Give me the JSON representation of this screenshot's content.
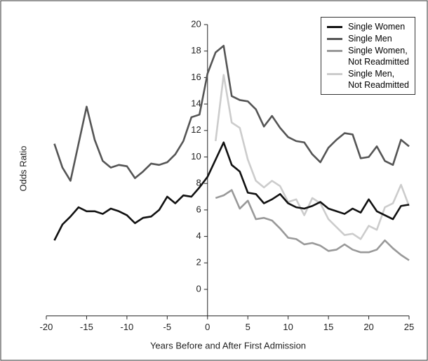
{
  "chart_data": {
    "type": "line",
    "xlabel": "Years Before and After First Admission",
    "ylabel": "Odds Ratio",
    "x": [
      -19,
      -18,
      -17,
      -16,
      -15,
      -14,
      -13,
      -12,
      -11,
      -10,
      -9,
      -8,
      -7,
      -6,
      -5,
      -4,
      -3,
      -2,
      -1,
      0,
      1,
      2,
      3,
      4,
      5,
      6,
      7,
      8,
      9,
      10,
      11,
      12,
      13,
      14,
      15,
      16,
      17,
      18,
      19,
      20,
      21,
      22,
      23,
      24,
      25
    ],
    "xlim": [
      -20,
      25
    ],
    "xticks": [
      -20,
      -15,
      -10,
      -5,
      0,
      5,
      10,
      15,
      20,
      25
    ],
    "ylim": [
      -2,
      20
    ],
    "yticks": [
      0,
      2,
      4,
      6,
      8,
      10,
      12,
      14,
      16,
      18,
      20
    ],
    "legend": "upper right",
    "series": [
      {
        "name": "Single Women",
        "color": "#111111",
        "values": [
          3.7,
          4.9,
          5.5,
          6.2,
          5.9,
          5.9,
          5.7,
          6.1,
          5.9,
          5.6,
          5.0,
          5.4,
          5.5,
          6.0,
          7.0,
          6.5,
          7.1,
          7.0,
          7.7,
          8.5,
          9.8,
          11.1,
          9.4,
          8.9,
          7.3,
          7.2,
          6.5,
          6.8,
          7.2,
          6.5,
          6.2,
          6.1,
          6.3,
          6.6,
          6.1,
          5.9,
          5.7,
          6.1,
          5.8,
          6.8,
          5.9,
          5.6,
          5.3,
          6.3,
          6.4
        ]
      },
      {
        "name": "Single Men",
        "color": "#555555",
        "values": [
          11.0,
          9.2,
          8.2,
          11.0,
          13.8,
          11.3,
          9.7,
          9.2,
          9.4,
          9.3,
          8.4,
          8.9,
          9.5,
          9.4,
          9.6,
          10.2,
          11.2,
          13.0,
          13.2,
          16.3,
          17.9,
          18.4,
          14.6,
          14.3,
          14.2,
          13.6,
          12.3,
          13.1,
          12.2,
          11.5,
          11.2,
          11.1,
          10.2,
          9.6,
          10.7,
          11.3,
          11.8,
          11.7,
          9.9,
          10.0,
          10.8,
          9.7,
          9.4,
          11.3,
          10.8
        ]
      },
      {
        "name": "Single Women,\nNot Readmitted",
        "color": "#999999",
        "values": [
          null,
          null,
          null,
          null,
          null,
          null,
          null,
          null,
          null,
          null,
          null,
          null,
          null,
          null,
          null,
          null,
          null,
          null,
          null,
          null,
          6.9,
          7.1,
          7.5,
          6.1,
          6.7,
          5.3,
          5.4,
          5.2,
          4.6,
          3.9,
          3.8,
          3.4,
          3.5,
          3.3,
          2.9,
          3.0,
          3.4,
          3.0,
          2.8,
          2.8,
          3.0,
          3.7,
          3.1,
          2.6,
          2.2
        ]
      },
      {
        "name": "Single Men,\nNot Readmitted",
        "color": "#cccccc",
        "values": [
          null,
          null,
          null,
          null,
          null,
          null,
          null,
          null,
          null,
          null,
          null,
          null,
          null,
          null,
          null,
          null,
          null,
          null,
          null,
          null,
          11.2,
          16.2,
          12.6,
          12.2,
          9.8,
          8.2,
          7.7,
          8.2,
          7.8,
          6.6,
          6.8,
          5.6,
          6.9,
          6.5,
          5.3,
          4.7,
          4.1,
          4.2,
          3.8,
          4.8,
          4.5,
          6.2,
          6.5,
          7.9,
          6.3
        ]
      }
    ]
  }
}
